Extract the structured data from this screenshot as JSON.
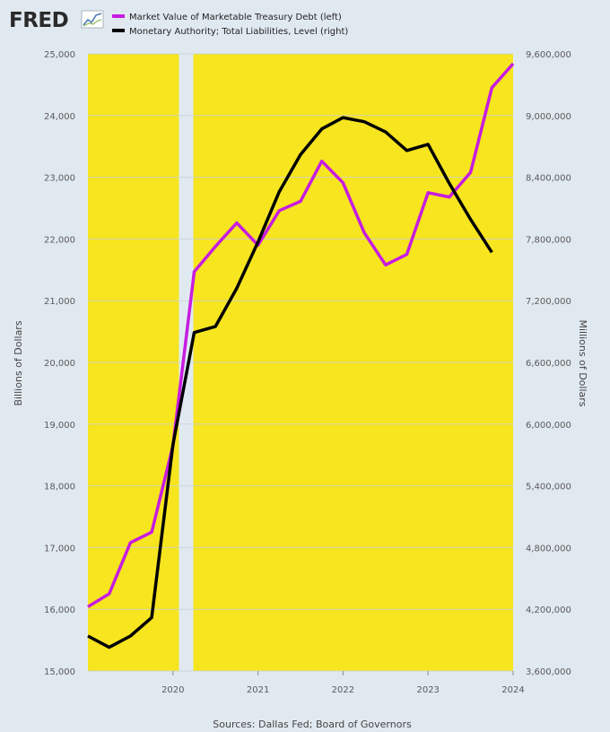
{
  "header": {
    "logo_text": "FRED",
    "logo_icon": "chart-line-icon"
  },
  "legend": [
    {
      "label": "Market Value of Marketable Treasury Debt (left)",
      "color": "#c71ce0"
    },
    {
      "label": "Monetary Authority; Total Liabilities, Level (right)",
      "color": "#000000"
    }
  ],
  "footer": {
    "source": "Sources: Dallas Fed; Board of Governors"
  },
  "colors": {
    "background": "#e1e9f0",
    "recession_shade": "#f6e51f",
    "gridline": "#c8cfd6"
  },
  "chart_data": {
    "type": "line",
    "shading_note": "two shaded regions spanning the plot, with an unshaded gap between them",
    "shaded_ranges": [
      [
        2019.0,
        2020.07
      ],
      [
        2020.24,
        2024.0
      ]
    ],
    "x": [
      2019.0,
      2019.25,
      2019.5,
      2019.75,
      2020.0,
      2020.25,
      2020.5,
      2020.75,
      2021.0,
      2021.25,
      2021.5,
      2021.75,
      2022.0,
      2022.25,
      2022.5,
      2022.75,
      2023.0,
      2023.25,
      2023.5,
      2023.75,
      2024.0
    ],
    "xlim": [
      2019.0,
      2024.0
    ],
    "x_ticks": [
      2020,
      2021,
      2022,
      2023,
      2024
    ],
    "x_tick_labels": [
      "2020",
      "2021",
      "2022",
      "2023",
      "2024"
    ],
    "ylabel_left": "Billions of Dollars",
    "ylabel_right": "Millions of Dollars",
    "ylim_left": [
      15000,
      25000
    ],
    "ylim_right": [
      3600000,
      9600000
    ],
    "y_ticks_left": [
      "15,000",
      "16,000",
      "17,000",
      "18,000",
      "19,000",
      "20,000",
      "21,000",
      "22,000",
      "23,000",
      "24,000",
      "25,000"
    ],
    "y_ticks_right": [
      "3,600,000",
      "4,200,000",
      "4,800,000",
      "5,400,000",
      "6,000,000",
      "6,600,000",
      "7,200,000",
      "7,800,000",
      "8,400,000",
      "9,000,000",
      "9,600,000"
    ],
    "grid": true,
    "legend_position": "top-left",
    "series": [
      {
        "name": "Market Value of Marketable Treasury Debt (left)",
        "axis": "left",
        "color": "#c71ce0",
        "values": [
          16040,
          16250,
          17080,
          17250,
          18650,
          21470,
          21880,
          22260,
          21900,
          22460,
          22610,
          23260,
          22910,
          22100,
          21580,
          21750,
          22750,
          22680,
          23080,
          24450,
          24840
        ]
      },
      {
        "name": "Monetary Authority; Total Liabilities, Level (right)",
        "axis": "right",
        "color": "#000000",
        "values": [
          3940000,
          3830000,
          3940000,
          4120000,
          5800000,
          6890000,
          6950000,
          7320000,
          7770000,
          8260000,
          8620000,
          8870000,
          8980000,
          8940000,
          8840000,
          8660000,
          8720000,
          8340000,
          7990000,
          7670000,
          null
        ]
      }
    ]
  }
}
